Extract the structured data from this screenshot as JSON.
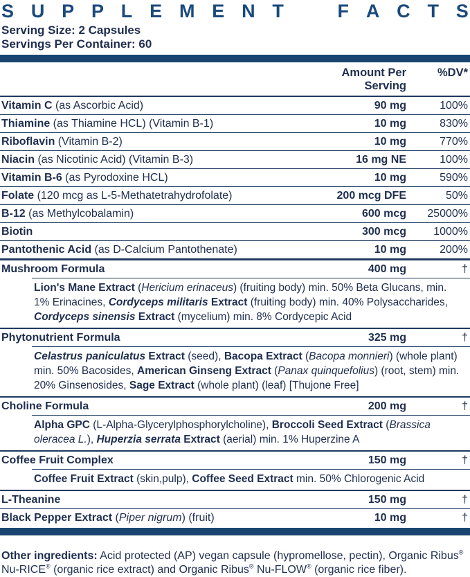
{
  "colors": {
    "text_navy": "#1f2e4f",
    "rule_navy": "#1e3a5f",
    "bar_navy": "#1a4470",
    "title_navy": "#1b4a7c"
  },
  "title": "SUPPLEMENT FACTS",
  "serving": {
    "size": "Serving Size: 2 Capsules",
    "per_container": "Servings Per Container: 60"
  },
  "table": {
    "header": {
      "amount": "Amount Per Serving",
      "dv": "%DV*"
    },
    "rows": [
      {
        "type": "nutrient",
        "after": "thin",
        "name": [
          {
            "t": "Vitamin C",
            "b": 1
          },
          {
            "t": " (as Ascorbic Acid)"
          }
        ],
        "amount": "90 mg",
        "dv": "100%"
      },
      {
        "type": "nutrient",
        "after": "thin",
        "name": [
          {
            "t": "Thiamine",
            "b": 1
          },
          {
            "t": " (as Thiamine HCL) (Vitamin B-1)"
          }
        ],
        "amount": "10 mg",
        "dv": "830%"
      },
      {
        "type": "nutrient",
        "after": "thin",
        "name": [
          {
            "t": "Riboflavin",
            "b": 1
          },
          {
            "t": " (Vitamin B-2)"
          }
        ],
        "amount": "10 mg",
        "dv": "770%"
      },
      {
        "type": "nutrient",
        "after": "thin",
        "name": [
          {
            "t": "Niacin",
            "b": 1
          },
          {
            "t": " (as Nicotinic Acid) (Vitamin B-3)"
          }
        ],
        "amount": "16 mg NE",
        "dv": "100%"
      },
      {
        "type": "nutrient",
        "after": "thin",
        "name": [
          {
            "t": "Vitamin B-6",
            "b": 1
          },
          {
            "t": " (as Pyrodoxine HCL)"
          }
        ],
        "amount": "10 mg",
        "dv": "590%"
      },
      {
        "type": "nutrient",
        "after": "thin",
        "name": [
          {
            "t": "Folate",
            "b": 1
          },
          {
            "t": " (120 mcg as L-5-Methatetrahydrofolate)"
          }
        ],
        "amount": "200 mcg DFE",
        "dv": "50%"
      },
      {
        "type": "nutrient",
        "after": "thin",
        "name": [
          {
            "t": "B-12",
            "b": 1
          },
          {
            "t": " (as Methylcobalamin)"
          }
        ],
        "amount": "600 mcg",
        "dv": "25000%"
      },
      {
        "type": "nutrient",
        "after": "thin",
        "name": [
          {
            "t": "Biotin",
            "b": 1
          }
        ],
        "amount": "300 mcg",
        "dv": "1000%"
      },
      {
        "type": "nutrient",
        "after": "thick",
        "name": [
          {
            "t": "Pantothenic Acid",
            "b": 1
          },
          {
            "t": " (as D-Calcium Pantothenate)"
          }
        ],
        "amount": "10 mg",
        "dv": "200%"
      },
      {
        "type": "formula",
        "after": "med",
        "name": [
          {
            "t": "Mushroom Formula",
            "b": 1
          }
        ],
        "amount": "400 mg",
        "dv": "†",
        "desc": [
          {
            "t": "Lion's Mane Extract",
            "b": 1
          },
          {
            "t": " ("
          },
          {
            "t": "Hericium erinaceus",
            "i": 1
          },
          {
            "t": ") (fruiting body) min. 50% Beta Glucans, min. 1% Erinacines, "
          },
          {
            "t": "Cordyceps militaris",
            "b": 1,
            "i": 1
          },
          {
            "t": " Extract",
            "b": 1
          },
          {
            "t": " (fruiting body) min. 40% Polysaccharides, "
          },
          {
            "t": "Cordyceps sinensis",
            "b": 1,
            "i": 1
          },
          {
            "t": " Extract",
            "b": 1
          },
          {
            "t": " (mycelium) min. 8% Cordycepic Acid"
          }
        ]
      },
      {
        "type": "formula",
        "after": "med",
        "name": [
          {
            "t": "Phytonutrient Formula",
            "b": 1
          }
        ],
        "amount": "325 mg",
        "dv": "†",
        "desc": [
          {
            "t": "Celastrus paniculatus",
            "b": 1,
            "i": 1
          },
          {
            "t": " Extract",
            "b": 1
          },
          {
            "t": " (seed), "
          },
          {
            "t": "Bacopa Extract",
            "b": 1
          },
          {
            "t": " ("
          },
          {
            "t": "Bacopa monnieri",
            "i": 1
          },
          {
            "t": ") (whole plant) min. 50% Bacosides, "
          },
          {
            "t": "American Ginseng Extract",
            "b": 1
          },
          {
            "t": " ("
          },
          {
            "t": "Panax quinquefolius",
            "i": 1
          },
          {
            "t": ") (root, stem) min. 20% Ginsenosides, "
          },
          {
            "t": "Sage Extract",
            "b": 1
          },
          {
            "t": " (whole plant) (leaf) [Thujone Free]"
          }
        ]
      },
      {
        "type": "formula",
        "after": "med",
        "name": [
          {
            "t": "Choline Formula",
            "b": 1
          }
        ],
        "amount": "200 mg",
        "dv": "†",
        "desc": [
          {
            "t": "Alpha GPC",
            "b": 1
          },
          {
            "t": " (L-Alpha-Glycerylphosphorylcholine), "
          },
          {
            "t": "Broccoli Seed Extract",
            "b": 1
          },
          {
            "t": " ("
          },
          {
            "t": "Brassica oleracea L.",
            "i": 1
          },
          {
            "t": "), "
          },
          {
            "t": "Huperzia serrata",
            "b": 1,
            "i": 1
          },
          {
            "t": " Extract",
            "b": 1
          },
          {
            "t": " (aerial) min. 1% Huperzine A"
          }
        ]
      },
      {
        "type": "formula",
        "after": "med",
        "name": [
          {
            "t": "Coffee Fruit Complex",
            "b": 1
          }
        ],
        "amount": "150 mg",
        "dv": "†",
        "desc": [
          {
            "t": "Coffee Fruit Extract",
            "b": 1
          },
          {
            "t": " (skin,pulp), "
          },
          {
            "t": "Coffee Seed Extract",
            "b": 1
          },
          {
            "t": " min. 50% Chlorogenic Acid"
          }
        ]
      },
      {
        "type": "nutrient",
        "after": "thin",
        "name": [
          {
            "t": "L-Theanine",
            "b": 1
          }
        ],
        "amount": "150 mg",
        "dv": "†"
      },
      {
        "type": "nutrient",
        "after": "none",
        "name": [
          {
            "t": "Black Pepper Extract",
            "b": 1
          },
          {
            "t": " ("
          },
          {
            "t": "Piper nigrum",
            "i": 1
          },
          {
            "t": ") (fruit)"
          }
        ],
        "amount": "10 mg",
        "dv": "†"
      }
    ]
  },
  "other_ingredients": [
    {
      "t": "Other ingredients:",
      "b": 1
    },
    {
      "t": " Acid protected (AP) vegan capsule (hypromellose, pectin), Organic Ribus"
    },
    {
      "t": "®",
      "s": 1
    },
    {
      "t": " Nu-RICE"
    },
    {
      "t": "®",
      "s": 1
    },
    {
      "t": " (organic rice extract) and Organic Ribus"
    },
    {
      "t": "®",
      "s": 1
    },
    {
      "t": " Nu-FLOW"
    },
    {
      "t": "®",
      "s": 1
    },
    {
      "t": " (organic rice fiber)."
    }
  ]
}
